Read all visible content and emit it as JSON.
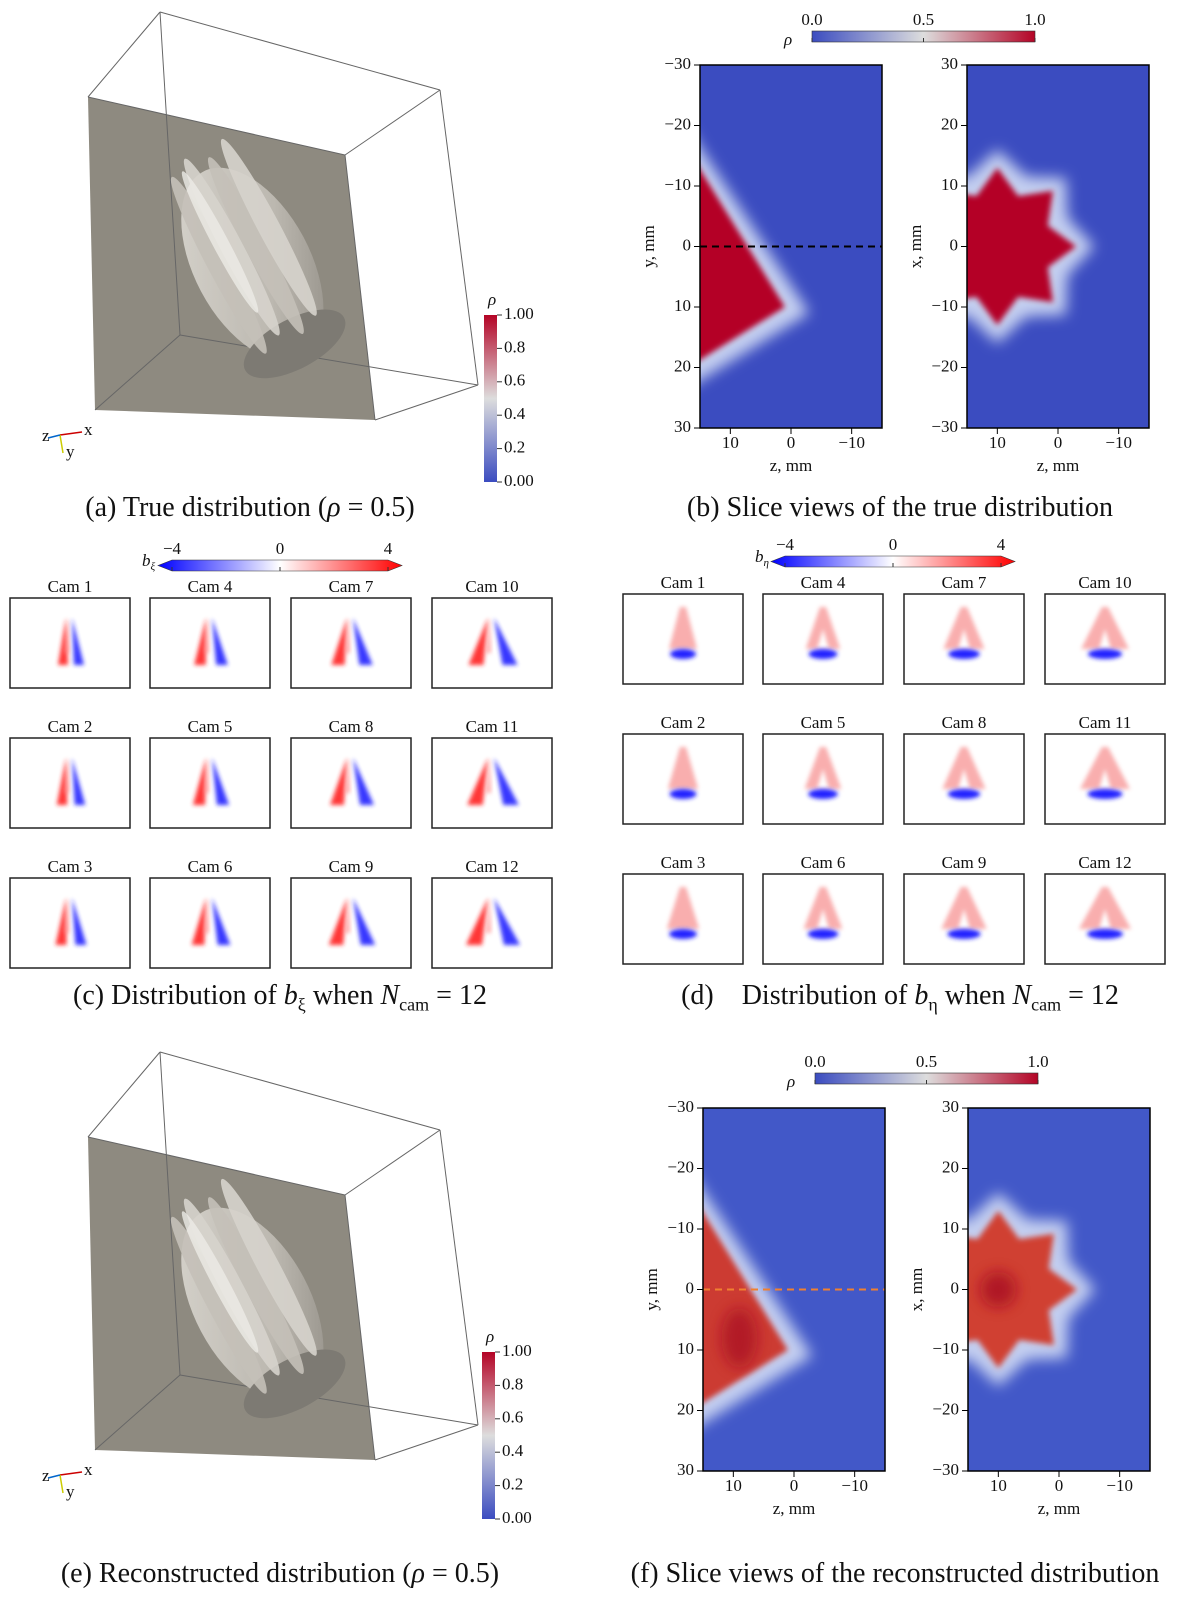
{
  "panels": [
    {
      "caption": [
        "(a) True distribution (",
        "ρ",
        " = 0.5)"
      ],
      "colorbar": {
        "label": "ρ",
        "ticks": [
          "1.00",
          "0.8",
          "0.6",
          "0.4",
          "0.2",
          "0.00"
        ]
      },
      "axes_labels": [
        "z",
        "x",
        "y"
      ]
    },
    {
      "caption": [
        "(b) Slice views of the true distribution"
      ],
      "colorbar": {
        "label": "ρ",
        "ticks": [
          "0.0",
          "0.5",
          "1.0"
        ]
      },
      "left": {
        "ylabel": "y, mm",
        "yticks": [
          "−30",
          "−20",
          "−10",
          "0",
          "10",
          "20",
          "30"
        ],
        "xlabel": "z, mm",
        "xticks": [
          "10",
          "0",
          "−10"
        ]
      },
      "right": {
        "ylabel": "x, mm",
        "yticks": [
          "30",
          "20",
          "10",
          "0",
          "−10",
          "−20",
          "−30"
        ],
        "xlabel": "z, mm",
        "xticks": [
          "10",
          "0",
          "−10"
        ]
      }
    },
    {
      "caption": [
        "(c) Distribution of ",
        "b",
        "ξ",
        " when ",
        "N",
        "cam",
        " = 12"
      ],
      "colorbar": {
        "label": [
          "b",
          "ξ"
        ],
        "ticks": [
          "−4",
          "0",
          "4"
        ]
      },
      "cams": [
        "Cam 1",
        "Cam 2",
        "Cam 3",
        "Cam 4",
        "Cam 5",
        "Cam 6",
        "Cam 7",
        "Cam 8",
        "Cam 9",
        "Cam 10",
        "Cam 11",
        "Cam 12"
      ]
    },
    {
      "caption": [
        "(d)    Distribution of ",
        "b",
        "η",
        " when ",
        "N",
        "cam",
        " = 12"
      ],
      "colorbar": {
        "label": [
          "b",
          "η"
        ],
        "ticks": [
          "−4",
          "0",
          "4"
        ]
      },
      "cams": [
        "Cam 1",
        "Cam 2",
        "Cam 3",
        "Cam 4",
        "Cam 5",
        "Cam 6",
        "Cam 7",
        "Cam 8",
        "Cam 9",
        "Cam 10",
        "Cam 11",
        "Cam 12"
      ]
    },
    {
      "caption": [
        "(e) Reconstructed distribution (",
        "ρ",
        " = 0.5)"
      ],
      "colorbar": {
        "label": "ρ",
        "ticks": [
          "1.00",
          "0.8",
          "0.6",
          "0.4",
          "0.2",
          "0.00"
        ]
      },
      "axes_labels": [
        "z",
        "x",
        "y"
      ]
    },
    {
      "caption": [
        "(f) Slice views of the reconstructed distribution"
      ],
      "colorbar": {
        "label": "ρ",
        "ticks": [
          "0.0",
          "0.5",
          "1.0"
        ]
      },
      "left": {
        "ylabel": "y, mm",
        "yticks": [
          "−30",
          "−20",
          "−10",
          "0",
          "10",
          "20",
          "30"
        ],
        "xlabel": "z, mm",
        "xticks": [
          "10",
          "0",
          "−10"
        ]
      },
      "right": {
        "ylabel": "x, mm",
        "yticks": [
          "30",
          "20",
          "10",
          "0",
          "−10",
          "−20",
          "−30"
        ],
        "xlabel": "z, mm",
        "xticks": [
          "10",
          "0",
          "−10"
        ]
      }
    }
  ]
}
